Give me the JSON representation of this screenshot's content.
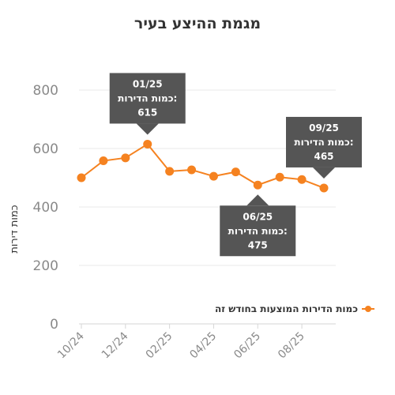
{
  "colors": {
    "series": "#f58220",
    "tooltip_bg": "#555555",
    "tooltip_text": "#ffffff",
    "grid": "#e9e9e9",
    "tick_text": "#8a8a8a",
    "title_text": "#333333"
  },
  "chart_data": {
    "type": "line",
    "title": "מגמת ההיצע בעיר",
    "xlabel": "",
    "ylabel": "כמות דירות",
    "ylim": [
      0,
      900
    ],
    "yticks": [
      0,
      200,
      400,
      600,
      800
    ],
    "grid": true,
    "legend_position": "right",
    "x": [
      "10/24",
      "11/24",
      "12/24",
      "01/25",
      "02/25",
      "03/25",
      "04/25",
      "05/25",
      "06/25",
      "07/25",
      "08/25",
      "09/25"
    ],
    "xtick_labels": [
      "10/24",
      "12/24",
      "02/25",
      "04/25",
      "06/25",
      "08/25"
    ],
    "series": [
      {
        "name": "כמות הדירות המוצעות בחודש זה",
        "values": [
          500,
          558,
          568,
          615,
          522,
          527,
          505,
          520,
          475,
          502,
          494,
          465
        ]
      }
    ],
    "annotations": [
      {
        "x": "01/25",
        "label": "כמות הדירות:",
        "value": "615",
        "placement": "above"
      },
      {
        "x": "06/25",
        "label": "כמות הדירות:",
        "value": "475",
        "placement": "below"
      },
      {
        "x": "09/25",
        "label": "כמות הדירות:",
        "value": "465",
        "placement": "above"
      }
    ]
  }
}
